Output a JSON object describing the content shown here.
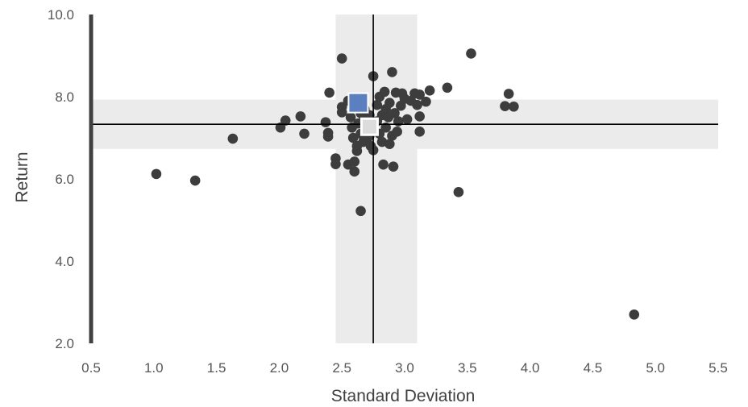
{
  "chart_data": {
    "type": "scatter",
    "xlabel": "Standard Deviation",
    "ylabel": "Return",
    "xlim": [
      0.5,
      5.5
    ],
    "ylim": [
      2.0,
      10.0
    ],
    "x_ticks": [
      "0.5",
      "1.0",
      "1.5",
      "2.0",
      "2.5",
      "3.0",
      "3.5",
      "4.0",
      "4.5",
      "5.0",
      "5.5"
    ],
    "x_tick_values": [
      0.5,
      1.0,
      1.5,
      2.0,
      2.5,
      3.0,
      3.5,
      4.0,
      4.5,
      5.0,
      5.5
    ],
    "y_ticks": [
      "2.0",
      "4.0",
      "6.0",
      "8.0",
      "10.0"
    ],
    "y_tick_values": [
      2.0,
      4.0,
      6.0,
      8.0,
      10.0
    ],
    "grid": false,
    "reference_lines": {
      "x": 2.75,
      "y": 7.33
    },
    "shaded_bands": {
      "x_range": [
        2.45,
        3.1
      ],
      "y_range": [
        6.73,
        7.93
      ]
    },
    "colors": {
      "points": "#3d3d3d",
      "highlight": "#5b7fbf",
      "band": "#ebebeb",
      "reference": "#000000",
      "axis": "#404040"
    },
    "series": [
      {
        "values": [
          [
            1.02,
            6.12
          ],
          [
            1.33,
            5.96
          ],
          [
            1.63,
            6.98
          ],
          [
            2.01,
            7.25
          ],
          [
            2.05,
            7.42
          ],
          [
            2.17,
            7.52
          ],
          [
            2.2,
            7.1
          ],
          [
            2.37,
            7.38
          ],
          [
            2.39,
            7.12
          ],
          [
            2.39,
            7.03
          ],
          [
            2.4,
            8.1
          ],
          [
            2.45,
            6.5
          ],
          [
            2.45,
            6.36
          ],
          [
            2.5,
            8.93
          ],
          [
            2.5,
            7.75
          ],
          [
            2.5,
            7.62
          ],
          [
            2.55,
            7.9
          ],
          [
            2.55,
            6.35
          ],
          [
            2.57,
            7.5
          ],
          [
            2.58,
            7.25
          ],
          [
            2.59,
            7.0
          ],
          [
            2.6,
            6.42
          ],
          [
            2.6,
            6.18
          ],
          [
            2.62,
            7.8
          ],
          [
            2.62,
            6.8
          ],
          [
            2.62,
            6.68
          ],
          [
            2.63,
            7.35
          ],
          [
            2.65,
            7.6
          ],
          [
            2.65,
            7.1
          ],
          [
            2.65,
            5.22
          ],
          [
            2.67,
            6.9
          ],
          [
            2.68,
            7.7
          ],
          [
            2.68,
            7.45
          ],
          [
            2.7,
            7.2
          ],
          [
            2.7,
            6.95
          ],
          [
            2.72,
            7.55
          ],
          [
            2.72,
            7.05
          ],
          [
            2.73,
            6.8
          ],
          [
            2.75,
            8.5
          ],
          [
            2.75,
            7.3
          ],
          [
            2.75,
            6.7
          ],
          [
            2.78,
            7.8
          ],
          [
            2.78,
            7.4
          ],
          [
            2.8,
            8.0
          ],
          [
            2.8,
            7.1
          ],
          [
            2.82,
            7.55
          ],
          [
            2.82,
            6.9
          ],
          [
            2.83,
            6.35
          ],
          [
            2.84,
            8.12
          ],
          [
            2.85,
            7.7
          ],
          [
            2.85,
            7.25
          ],
          [
            2.87,
            7.5
          ],
          [
            2.88,
            7.85
          ],
          [
            2.88,
            6.85
          ],
          [
            2.9,
            8.6
          ],
          [
            2.9,
            7.05
          ],
          [
            2.91,
            6.3
          ],
          [
            2.92,
            7.6
          ],
          [
            2.93,
            8.1
          ],
          [
            2.94,
            7.15
          ],
          [
            2.95,
            7.4
          ],
          [
            2.97,
            7.78
          ],
          [
            2.98,
            8.08
          ],
          [
            3.0,
            7.95
          ],
          [
            3.02,
            7.45
          ],
          [
            3.05,
            7.9
          ],
          [
            3.08,
            8.08
          ],
          [
            3.1,
            7.8
          ],
          [
            3.12,
            8.05
          ],
          [
            3.12,
            7.52
          ],
          [
            3.12,
            7.15
          ],
          [
            3.17,
            7.88
          ],
          [
            3.2,
            8.15
          ],
          [
            3.34,
            8.22
          ],
          [
            3.43,
            5.68
          ],
          [
            3.53,
            9.05
          ],
          [
            3.8,
            7.77
          ],
          [
            3.83,
            8.07
          ],
          [
            3.87,
            7.76
          ],
          [
            4.83,
            2.7
          ]
        ]
      }
    ],
    "highlight_points": [
      {
        "x": 2.63,
        "y": 7.85,
        "style": "filled-square"
      },
      {
        "x": 2.72,
        "y": 7.27,
        "style": "hollow-square"
      }
    ]
  }
}
